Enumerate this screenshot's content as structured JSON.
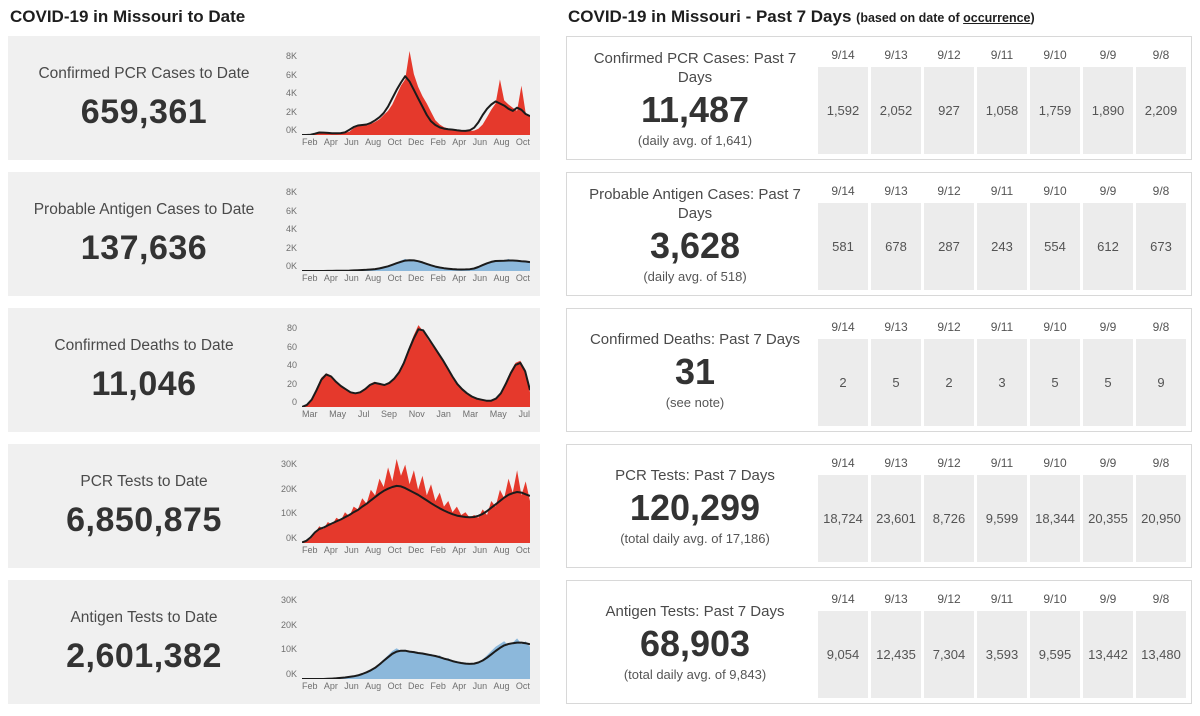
{
  "left_panel": {
    "title": "COVID-19 in Missouri to Date",
    "cards": [
      {
        "label": "Confirmed PCR Cases to Date",
        "value": "659,361"
      },
      {
        "label": "Probable Antigen Cases to Date",
        "value": "137,636"
      },
      {
        "label": "Confirmed Deaths to Date",
        "value": "11,046"
      },
      {
        "label": "PCR Tests to Date",
        "value": "6,850,875"
      },
      {
        "label": "Antigen Tests to Date",
        "value": "2,601,382"
      }
    ]
  },
  "right_panel": {
    "title": "COVID-19 in Missouri - Past 7 Days",
    "subtitle_prefix": "(based on date of ",
    "subtitle_link": "occurrence",
    "subtitle_suffix": ")",
    "dates": [
      "9/14",
      "9/13",
      "9/12",
      "9/11",
      "9/10",
      "9/9",
      "9/8"
    ],
    "cards": [
      {
        "label": "Confirmed PCR Cases: Past 7 Days",
        "value": "11,487",
        "subtext": "(daily avg. of 1,641)",
        "daily_values": [
          "1,592",
          "2,052",
          "927",
          "1,058",
          "1,759",
          "1,890",
          "2,209"
        ]
      },
      {
        "label": "Probable Antigen Cases: Past 7 Days",
        "value": "3,628",
        "subtext": "(daily avg. of 518)",
        "daily_values": [
          "581",
          "678",
          "287",
          "243",
          "554",
          "612",
          "673"
        ]
      },
      {
        "label": "Confirmed Deaths: Past 7 Days",
        "value": "31",
        "subtext": "(see note)",
        "daily_values": [
          "2",
          "5",
          "2",
          "3",
          "5",
          "5",
          "9"
        ]
      },
      {
        "label": "PCR Tests: Past 7 Days",
        "value": "120,299",
        "subtext": "(total daily avg. of 17,186)",
        "daily_values": [
          "18,724",
          "23,601",
          "8,726",
          "9,599",
          "18,344",
          "20,355",
          "20,950"
        ]
      },
      {
        "label": "Antigen Tests: Past 7 Days",
        "value": "68,903",
        "subtext": "(total daily avg. of 9,843)",
        "daily_values": [
          "9,054",
          "12,435",
          "7,304",
          "3,593",
          "9,595",
          "13,442",
          "13,480"
        ]
      }
    ]
  },
  "colors": {
    "case_red": "#e5392c",
    "antigen_blue": "#8cb8db",
    "trend_black": "#1b1b1b",
    "left_card_gray": "#f0f0f0",
    "table_cell_gray": "#ececec"
  },
  "chart_data": [
    {
      "type": "area",
      "title": "Confirmed PCR Cases to Date (daily cases with 7-day average trend line)",
      "ymax": 8000,
      "yticks": [
        "8K",
        "6K",
        "4K",
        "2K",
        "0K"
      ],
      "xticks": [
        "Feb",
        "Apr",
        "Jun",
        "Aug",
        "Oct",
        "Dec",
        "Feb",
        "Apr",
        "Jun",
        "Aug",
        "Oct"
      ],
      "color": "#e5392c",
      "line_color": "#1b1b1b",
      "bars": [
        0,
        0,
        40,
        150,
        280,
        240,
        200,
        170,
        160,
        190,
        230,
        300,
        650,
        850,
        950,
        900,
        1050,
        1250,
        1500,
        1900,
        2300,
        2900,
        3800,
        4700,
        5300,
        8000,
        5800,
        4600,
        3700,
        3000,
        2200,
        1400,
        1000,
        750,
        620,
        560,
        520,
        470,
        420,
        380,
        420,
        600,
        1000,
        1700,
        2400,
        3000,
        5300,
        3300,
        2900,
        2600,
        2300,
        4700,
        2100,
        1800
      ],
      "line": [
        0,
        0,
        30,
        120,
        240,
        230,
        200,
        170,
        165,
        180,
        250,
        500,
        750,
        900,
        950,
        1000,
        1150,
        1400,
        1700,
        2100,
        2700,
        3500,
        4300,
        5000,
        5600,
        5100,
        4300,
        3500,
        2700,
        1900,
        1300,
        950,
        720,
        610,
        550,
        510,
        460,
        410,
        390,
        450,
        700,
        1200,
        1900,
        2500,
        2900,
        3200,
        3000,
        2800,
        2500,
        2300,
        2600,
        2400,
        2000,
        1800
      ]
    },
    {
      "type": "area",
      "title": "Probable Antigen Cases to Date (daily cases with 7-day average trend line)",
      "ymax": 8000,
      "yticks": [
        "8K",
        "6K",
        "4K",
        "2K",
        "0K"
      ],
      "xticks": [
        "Feb",
        "Apr",
        "Jun",
        "Aug",
        "Oct",
        "Dec",
        "Feb",
        "Apr",
        "Jun",
        "Aug",
        "Oct"
      ],
      "color": "#8cb8db",
      "line_color": "#1b1b1b",
      "bars": [
        0,
        0,
        0,
        0,
        0,
        0,
        10,
        10,
        20,
        20,
        30,
        40,
        60,
        80,
        100,
        120,
        150,
        200,
        280,
        380,
        500,
        650,
        820,
        1000,
        1150,
        1000,
        1100,
        950,
        800,
        650,
        500,
        380,
        300,
        240,
        200,
        170,
        150,
        140,
        150,
        180,
        260,
        420,
        620,
        800,
        950,
        1050,
        900,
        1000,
        1150,
        950,
        1000,
        850,
        950,
        800
      ],
      "line": [
        0,
        0,
        0,
        0,
        0,
        0,
        8,
        10,
        15,
        20,
        28,
        38,
        55,
        75,
        95,
        115,
        140,
        185,
        250,
        340,
        450,
        590,
        740,
        880,
        990,
        1030,
        1010,
        930,
        820,
        680,
        540,
        420,
        330,
        265,
        215,
        180,
        155,
        145,
        150,
        175,
        240,
        380,
        560,
        730,
        870,
        950,
        960,
        970,
        1000,
        1000,
        980,
        930,
        900,
        850
      ]
    },
    {
      "type": "area",
      "title": "Confirmed Deaths to Date (daily deaths with 7-day average trend line)",
      "ymax": 80,
      "yticks": [
        "80",
        "60",
        "40",
        "20",
        "0"
      ],
      "xticks": [
        "Mar",
        "May",
        "Jul",
        "Sep",
        "Nov",
        "Jan",
        "Mar",
        "May",
        "Jul"
      ],
      "color": "#e5392c",
      "line_color": "#1b1b1b",
      "bars": [
        0,
        2,
        8,
        18,
        28,
        32,
        30,
        24,
        20,
        16,
        14,
        13,
        15,
        18,
        22,
        24,
        22,
        21,
        24,
        28,
        34,
        44,
        56,
        68,
        78,
        72,
        64,
        58,
        52,
        44,
        36,
        28,
        22,
        16,
        12,
        10,
        8,
        7,
        6,
        6,
        8,
        14,
        24,
        34,
        42,
        44,
        36,
        14
      ],
      "line": [
        0,
        2,
        7,
        16,
        26,
        31,
        29,
        24,
        20,
        17,
        14,
        13,
        14,
        17,
        21,
        23,
        22,
        21,
        23,
        27,
        33,
        42,
        54,
        65,
        74,
        73,
        66,
        59,
        52,
        45,
        37,
        29,
        22,
        17,
        13,
        10,
        8,
        7,
        6,
        6,
        8,
        13,
        22,
        32,
        40,
        42,
        34,
        16
      ]
    },
    {
      "type": "area",
      "title": "PCR Tests to Date (daily tests with 7-day average trend line)",
      "ymax": 30000,
      "yticks": [
        "30K",
        "20K",
        "10K",
        "0K"
      ],
      "xticks": [
        "Feb",
        "Apr",
        "Jun",
        "Aug",
        "Oct",
        "Dec",
        "Feb",
        "Apr",
        "Jun",
        "Aug",
        "Oct"
      ],
      "color": "#e5392c",
      "line_color": "#1b1b1b",
      "bars": [
        100,
        400,
        1500,
        3500,
        6000,
        5000,
        7500,
        6500,
        9000,
        8000,
        11000,
        9500,
        13000,
        12000,
        16000,
        14000,
        19000,
        17000,
        23000,
        20000,
        27000,
        22000,
        30000,
        24000,
        28000,
        21000,
        26000,
        19000,
        24000,
        17000,
        21000,
        15000,
        18000,
        13000,
        15000,
        11000,
        13000,
        10000,
        11000,
        9000,
        10000,
        9000,
        12000,
        10000,
        15000,
        13000,
        19000,
        16000,
        23000,
        18000,
        26000,
        17000,
        22000,
        15000
      ],
      "line": [
        200,
        800,
        2000,
        3800,
        5000,
        5500,
        6300,
        7000,
        7700,
        8400,
        9200,
        10000,
        11000,
        11800,
        13000,
        14000,
        15200,
        16400,
        17600,
        18600,
        19400,
        20000,
        20400,
        20200,
        19600,
        18800,
        18000,
        17200,
        16200,
        15200,
        14200,
        13300,
        12400,
        11600,
        10900,
        10300,
        9800,
        9500,
        9300,
        9200,
        9300,
        9700,
        10400,
        11400,
        12600,
        13800,
        15000,
        16200,
        17200,
        17800,
        18200,
        18000,
        17400,
        16800
      ]
    },
    {
      "type": "area",
      "title": "Antigen Tests to Date (daily tests with 7-day average trend line)",
      "ymax": 30000,
      "yticks": [
        "30K",
        "20K",
        "10K",
        "0K"
      ],
      "xticks": [
        "Feb",
        "Apr",
        "Jun",
        "Aug",
        "Oct",
        "Dec",
        "Feb",
        "Apr",
        "Jun",
        "Aug",
        "Oct"
      ],
      "color": "#8cb8db",
      "line_color": "#1b1b1b",
      "bars": [
        0,
        0,
        0,
        0,
        0,
        0,
        100,
        200,
        300,
        400,
        600,
        800,
        1000,
        1400,
        1900,
        2500,
        3200,
        4200,
        5500,
        7000,
        8500,
        10000,
        11000,
        10000,
        10500,
        9500,
        10000,
        9000,
        9500,
        8500,
        9000,
        8000,
        8500,
        7000,
        7500,
        6000,
        6500,
        5500,
        6000,
        5000,
        5500,
        6000,
        7000,
        8500,
        10000,
        11500,
        12500,
        13500,
        12000,
        13000,
        14500,
        12500,
        13500,
        11500
      ],
      "line": [
        0,
        0,
        0,
        0,
        0,
        0,
        80,
        150,
        250,
        380,
        550,
        750,
        950,
        1300,
        1800,
        2400,
        3100,
        4000,
        5200,
        6500,
        7800,
        9000,
        9800,
        10100,
        10100,
        9800,
        9600,
        9300,
        9100,
        8800,
        8500,
        8200,
        7800,
        7300,
        6900,
        6400,
        6000,
        5700,
        5500,
        5400,
        5500,
        5900,
        6600,
        7600,
        8800,
        10000,
        11100,
        12000,
        12500,
        12800,
        13000,
        13000,
        12800,
        12400
      ]
    }
  ]
}
